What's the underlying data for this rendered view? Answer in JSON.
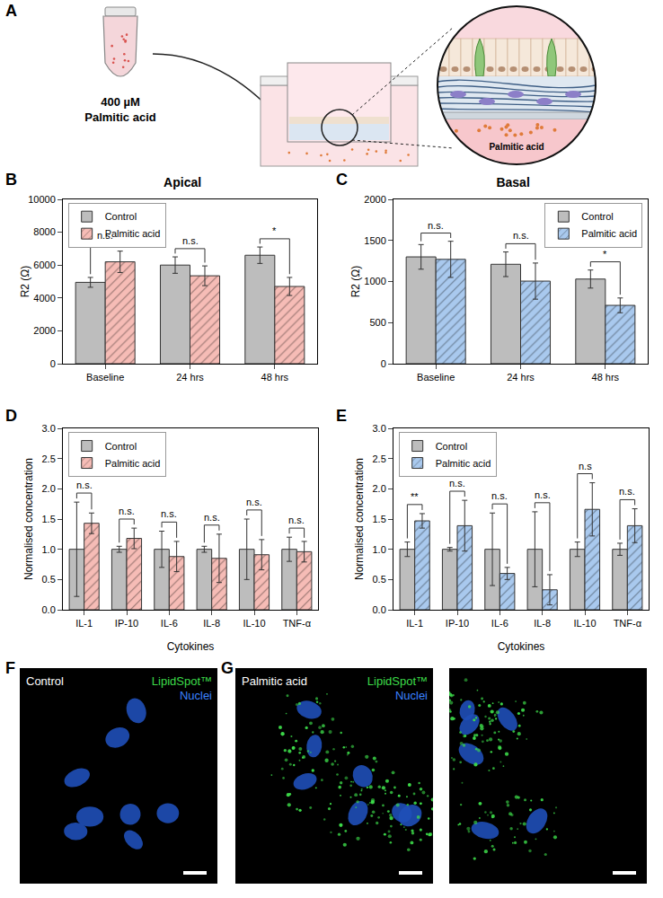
{
  "chart_data": [
    {
      "panel": "B",
      "type": "bar",
      "title": "Apical",
      "ylabel": "R2 (Ω)",
      "categories": [
        "Baseline",
        "24 hrs",
        "48 hrs"
      ],
      "series": [
        {
          "name": "Control",
          "color": "#bdbdbd",
          "marker": "solid",
          "values": [
            4950,
            6000,
            6600
          ],
          "errors": [
            300,
            500,
            500
          ]
        },
        {
          "name": "Palmitic acid",
          "color": "#f6bcb6",
          "marker": "hatched",
          "values": [
            6200,
            5350,
            4700
          ],
          "errors": [
            650,
            600,
            550
          ]
        }
      ],
      "significance": [
        "n.s.",
        "n.s.",
        "*"
      ],
      "ylim": [
        0,
        10000
      ],
      "yticks": [
        0,
        2000,
        4000,
        6000,
        8000,
        10000
      ],
      "grid": false,
      "legend": "top left"
    },
    {
      "panel": "C",
      "type": "bar",
      "title": "Basal",
      "ylabel": "R2 (Ω)",
      "categories": [
        "Baseline",
        "24 hrs",
        "48 hrs"
      ],
      "series": [
        {
          "name": "Control",
          "color": "#bdbdbd",
          "marker": "solid",
          "values": [
            1300,
            1210,
            1030
          ],
          "errors": [
            150,
            150,
            110
          ]
        },
        {
          "name": "Palmitic acid",
          "color": "#a9c9ee",
          "marker": "hatched",
          "values": [
            1270,
            1005,
            710
          ],
          "errors": [
            220,
            220,
            90
          ]
        }
      ],
      "significance": [
        "n.s.",
        "n.s.",
        "*"
      ],
      "ylim": [
        0,
        2000
      ],
      "yticks": [
        0,
        500,
        1000,
        1500,
        2000
      ],
      "grid": false,
      "legend": "top right"
    },
    {
      "panel": "D",
      "type": "bar",
      "xlabel": "Cytokines",
      "ylabel": "Normalised concentration",
      "categories": [
        "IL-1",
        "IP-10",
        "IL-6",
        "IL-8",
        "IL-10",
        "TNF-α"
      ],
      "series": [
        {
          "name": "Control",
          "color": "#bdbdbd",
          "marker": "solid",
          "values": [
            1.0,
            1.0,
            1.0,
            1.0,
            1.0,
            1.0
          ],
          "errors": [
            0.78,
            0.05,
            0.3,
            0.05,
            0.5,
            0.2
          ]
        },
        {
          "name": "Palmitic acid",
          "color": "#f6bcb6",
          "marker": "hatched",
          "values": [
            1.43,
            1.18,
            0.88,
            0.85,
            0.91,
            0.96
          ],
          "errors": [
            0.17,
            0.17,
            0.25,
            0.4,
            0.25,
            0.17
          ]
        }
      ],
      "significance": [
        "n.s.",
        "n.s.",
        "n.s.",
        "n.s.",
        "n.s.",
        "n.s."
      ],
      "ylim": [
        0,
        3
      ],
      "yticks": [
        {
          "value": 0,
          "label": "0.0"
        },
        {
          "value": 0.5,
          "label": "0.5"
        },
        {
          "value": 1,
          "label": "1.0"
        },
        {
          "value": 1.5,
          "label": "1.5"
        },
        {
          "value": 2,
          "label": "2.0"
        },
        {
          "value": 2.5,
          "label": "2.5"
        },
        {
          "value": 3,
          "label": "3.0"
        }
      ],
      "grid": false,
      "legend": "top left"
    },
    {
      "panel": "E",
      "type": "bar",
      "xlabel": "Cytokines",
      "ylabel": "Normalised concentration",
      "categories": [
        "IL-1",
        "IP-10",
        "IL-6",
        "IL-8",
        "IL-10",
        "TNF-α"
      ],
      "series": [
        {
          "name": "Control",
          "color": "#bdbdbd",
          "marker": "solid",
          "values": [
            1.0,
            1.0,
            1.0,
            1.0,
            1.0,
            1.0
          ],
          "errors": [
            0.12,
            0.03,
            0.6,
            0.62,
            0.12,
            0.1
          ]
        },
        {
          "name": "Palmitic acid",
          "color": "#a9c9ee",
          "marker": "hatched",
          "values": [
            1.47,
            1.39,
            0.6,
            0.33,
            1.66,
            1.39
          ],
          "errors": [
            0.12,
            0.42,
            0.1,
            0.25,
            0.44,
            0.28
          ]
        }
      ],
      "significance": [
        "**",
        "n.s.",
        "n.s.",
        "n.s.",
        "n.s",
        "n.s."
      ],
      "ylim": [
        0,
        3
      ],
      "yticks": [
        {
          "value": 0,
          "label": "0.0"
        },
        {
          "value": 0.5,
          "label": "0.5"
        },
        {
          "value": 1,
          "label": "1.0"
        },
        {
          "value": 1.5,
          "label": "1.5"
        },
        {
          "value": 2,
          "label": "2.0"
        },
        {
          "value": 2.5,
          "label": "2.5"
        },
        {
          "value": 3,
          "label": "3.0"
        }
      ],
      "grid": false,
      "legend": "top left"
    }
  ],
  "schematic": {
    "panel": "A",
    "reagent_conc": "400 µM",
    "reagent": "Palmitic acid",
    "inset_label": "Palmitic acid"
  },
  "images": [
    {
      "panel": "F",
      "frames": [
        {
          "label": "Control",
          "droplets": false,
          "channels": [
            {
              "name": "LipidSpot™",
              "color": "#3ddc4a"
            },
            {
              "name": "Nuclei",
              "color": "#3b82ff"
            }
          ]
        }
      ]
    },
    {
      "panel": "G",
      "frames": [
        {
          "label": "Palmitic acid",
          "droplets": true,
          "channels": [
            {
              "name": "LipidSpot™",
              "color": "#3ddc4a"
            },
            {
              "name": "Nuclei",
              "color": "#3b82ff"
            }
          ]
        },
        {
          "droplets": true,
          "channels": []
        }
      ]
    }
  ]
}
